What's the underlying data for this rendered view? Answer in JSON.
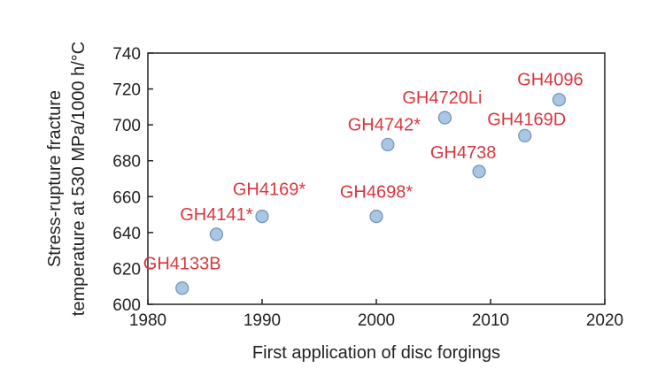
{
  "chart_data": {
    "type": "scatter",
    "xlabel": "First application of disc forgings",
    "ylabel_lines": [
      "Stress-rupture fracture",
      "temperature at 530 MPa/1000 h/°C"
    ],
    "xlim": [
      1980,
      2020
    ],
    "ylim": [
      600,
      740
    ],
    "xticks": [
      1980,
      1990,
      2000,
      2010,
      2020
    ],
    "yticks": [
      600,
      620,
      640,
      660,
      680,
      700,
      720,
      740
    ],
    "grid": false,
    "marker_color": "#a9c7e3",
    "marker_edge_color": "#6f93b8",
    "label_color": "#d9363e",
    "points": [
      {
        "label": "GH4133B",
        "x": 1983,
        "y": 609
      },
      {
        "label": "GH4141*",
        "x": 1986,
        "y": 639
      },
      {
        "label": "GH4169*",
        "x": 1990,
        "y": 649
      },
      {
        "label": "GH4698*",
        "x": 2000,
        "y": 649
      },
      {
        "label": "GH4742*",
        "x": 2001,
        "y": 689
      },
      {
        "label": "GH4720Li",
        "x": 2006,
        "y": 704
      },
      {
        "label": "GH4738",
        "x": 2009,
        "y": 674
      },
      {
        "label": "GH4169D",
        "x": 2013,
        "y": 694
      },
      {
        "label": "GH4096",
        "x": 2016,
        "y": 714
      }
    ]
  }
}
